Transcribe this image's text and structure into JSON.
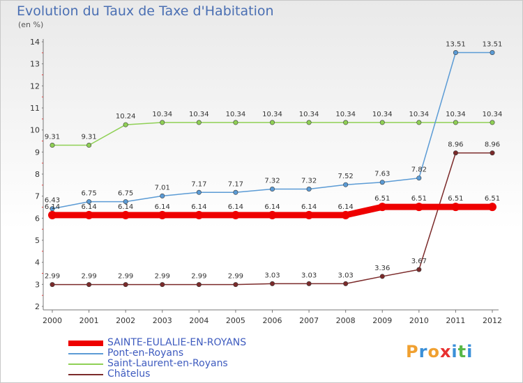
{
  "title": "Evolution du Taux de Taxe d'Habitation",
  "subtitle": "(en %)",
  "logo": {
    "text": "Proxiti",
    "colors": [
      "#f0a030",
      "#3a8fd8",
      "#f0a030",
      "#e83030",
      "#3a8fd8",
      "#58b848",
      "#3a8fd8"
    ]
  },
  "chart_data": {
    "type": "line",
    "title": "Evolution du Taux de Taxe d'Habitation",
    "ylabel": "(en %)",
    "xlabel": "",
    "x": [
      "2000",
      "2001",
      "2002",
      "2003",
      "2004",
      "2005",
      "2006",
      "2007",
      "2008",
      "2009",
      "2010",
      "2011",
      "2012"
    ],
    "ylim": [
      2,
      14
    ],
    "yticks": [
      2,
      3,
      4,
      5,
      6,
      7,
      8,
      9,
      10,
      11,
      12,
      13,
      14
    ],
    "grid": false,
    "legend": "bottom-left",
    "series": [
      {
        "name": "SAINTE-EULALIE-EN-ROYANS",
        "color": "#ee0000",
        "values": [
          6.14,
          6.14,
          6.14,
          6.14,
          6.14,
          6.14,
          6.14,
          6.14,
          6.14,
          6.51,
          6.51,
          6.51,
          6.51
        ],
        "labels": [
          "6.14",
          "6.14",
          "6.14",
          "6.14",
          "6.14",
          "6.14",
          "6.14",
          "6.14",
          "6.14",
          "6.51",
          "6.51",
          "6.51",
          "6.51"
        ]
      },
      {
        "name": "Pont-en-Royans",
        "color": "#5b9bd5",
        "values": [
          6.43,
          6.75,
          6.75,
          7.01,
          7.17,
          7.17,
          7.32,
          7.32,
          7.52,
          7.63,
          7.82,
          13.51,
          13.51
        ],
        "labels": [
          "6.43",
          "6.75",
          "6.75",
          "7.01",
          "7.17",
          "7.17",
          "7.32",
          "7.32",
          "7.52",
          "7.63",
          "7.82",
          "13.51",
          "13.51"
        ]
      },
      {
        "name": "Saint-Laurent-en-Royans",
        "color": "#8fd055",
        "values": [
          9.31,
          9.31,
          10.24,
          10.34,
          10.34,
          10.34,
          10.34,
          10.34,
          10.34,
          10.34,
          10.34,
          10.34,
          10.34
        ],
        "labels": [
          "9.31",
          "9.31",
          "10.24",
          "10.34",
          "10.34",
          "10.34",
          "10.34",
          "10.34",
          "10.34",
          "10.34",
          "10.34",
          "10.34",
          "10.34"
        ]
      },
      {
        "name": "Châtelus",
        "color": "#7b2a2a",
        "values": [
          2.99,
          2.99,
          2.99,
          2.99,
          2.99,
          2.99,
          3.03,
          3.03,
          3.03,
          3.36,
          3.67,
          8.96,
          8.96
        ],
        "labels": [
          "2.99",
          "2.99",
          "2.99",
          "2.99",
          "2.99",
          "2.99",
          "3.03",
          "3.03",
          "3.03",
          "3.36",
          "3.67",
          "8.96",
          "8.96"
        ]
      }
    ]
  }
}
